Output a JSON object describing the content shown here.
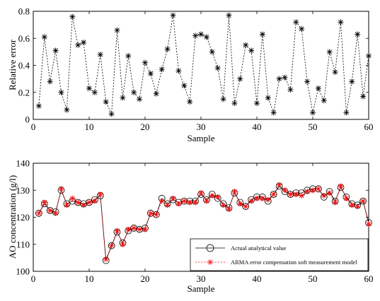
{
  "chart_data": [
    {
      "type": "scatter",
      "line_style": "dotted",
      "marker": "asterisk",
      "color": "#000000",
      "xlabel": "Sample",
      "ylabel": "Relative error",
      "xlim": [
        0,
        60
      ],
      "ylim": [
        0,
        0.8
      ],
      "xticks": [
        0,
        10,
        20,
        30,
        40,
        50,
        60
      ],
      "yticks": [
        0,
        0.2,
        0.4,
        0.6,
        0.8
      ],
      "x": [
        1,
        2,
        3,
        4,
        5,
        6,
        7,
        8,
        9,
        10,
        11,
        12,
        13,
        14,
        15,
        16,
        17,
        18,
        19,
        20,
        21,
        22,
        23,
        24,
        25,
        26,
        27,
        28,
        29,
        30,
        31,
        32,
        33,
        34,
        35,
        36,
        37,
        38,
        39,
        40,
        41,
        42,
        43,
        44,
        45,
        46,
        47,
        48,
        49,
        50,
        51,
        52,
        53,
        54,
        55,
        56,
        57,
        58,
        59,
        60
      ],
      "y": [
        0.1,
        0.61,
        0.28,
        0.51,
        0.2,
        0.07,
        0.76,
        0.55,
        0.57,
        0.23,
        0.2,
        0.48,
        0.13,
        0.04,
        0.66,
        0.16,
        0.47,
        0.2,
        0.15,
        0.42,
        0.34,
        0.19,
        0.37,
        0.52,
        0.77,
        0.36,
        0.25,
        0.13,
        0.62,
        0.63,
        0.61,
        0.5,
        0.38,
        0.15,
        0.77,
        0.12,
        0.3,
        0.55,
        0.51,
        0.12,
        0.63,
        0.16,
        0.05,
        0.3,
        0.31,
        0.22,
        0.72,
        0.67,
        0.28,
        0.05,
        0.23,
        0.14,
        0.5,
        0.35,
        0.72,
        0.05,
        0.28,
        0.63,
        0.17,
        0.47
      ]
    },
    {
      "type": "line",
      "xlabel": "Sample",
      "ylabel": "AO concentration (g/l)",
      "xlim": [
        0,
        60
      ],
      "ylim": [
        100,
        140
      ],
      "xticks": [
        0,
        10,
        20,
        30,
        40,
        50,
        60
      ],
      "yticks": [
        100,
        110,
        120,
        130,
        140
      ],
      "legend_position": "bottom-right",
      "x": [
        1,
        2,
        3,
        4,
        5,
        6,
        7,
        8,
        9,
        10,
        11,
        12,
        13,
        14,
        15,
        16,
        17,
        18,
        19,
        20,
        21,
        22,
        23,
        24,
        25,
        26,
        27,
        28,
        29,
        30,
        31,
        32,
        33,
        34,
        35,
        36,
        37,
        38,
        39,
        40,
        41,
        42,
        43,
        44,
        45,
        46,
        47,
        48,
        49,
        50,
        51,
        52,
        53,
        54,
        55,
        56,
        57,
        58,
        59,
        60
      ],
      "series": [
        {
          "name": "Actual analytical value",
          "color": "#000000",
          "line_style": "solid",
          "marker": "circle",
          "values": [
            121.5,
            125,
            122.5,
            122,
            130,
            125,
            126,
            125.5,
            125,
            125.5,
            126.5,
            128,
            104,
            109.5,
            114.5,
            110.5,
            115,
            116,
            115.5,
            116,
            121.5,
            121,
            127,
            125,
            126.5,
            125.5,
            126,
            126,
            126,
            128.5,
            126.5,
            128.5,
            127,
            125,
            123.5,
            129,
            125.5,
            124,
            126.5,
            127.5,
            127.5,
            126,
            128.5,
            131.5,
            129.5,
            128.5,
            129,
            129,
            130,
            130.5,
            130.5,
            127.5,
            129.5,
            126,
            131,
            127.5,
            125,
            124.5,
            126,
            118
          ]
        },
        {
          "name": "ARMA error compensation soft measurement model",
          "color": "#ff0000",
          "line_style": "dotted",
          "marker": "asterisk",
          "values": [
            121.5,
            125.5,
            122.5,
            121.5,
            130.5,
            124.5,
            127,
            125.5,
            124.5,
            125.5,
            126,
            128.5,
            104.5,
            109.5,
            115,
            110,
            115.5,
            116,
            115.5,
            115.5,
            121.5,
            121,
            126,
            124.5,
            127,
            125,
            126,
            125.5,
            125.5,
            129,
            126,
            128,
            127.5,
            124.5,
            123,
            129.5,
            125,
            124,
            126,
            127,
            127,
            126.5,
            128.5,
            132,
            130,
            128.5,
            128.5,
            128,
            129.5,
            130,
            130.5,
            128,
            129,
            125.5,
            131.5,
            127,
            124.5,
            124,
            126,
            117.5
          ]
        }
      ]
    }
  ]
}
